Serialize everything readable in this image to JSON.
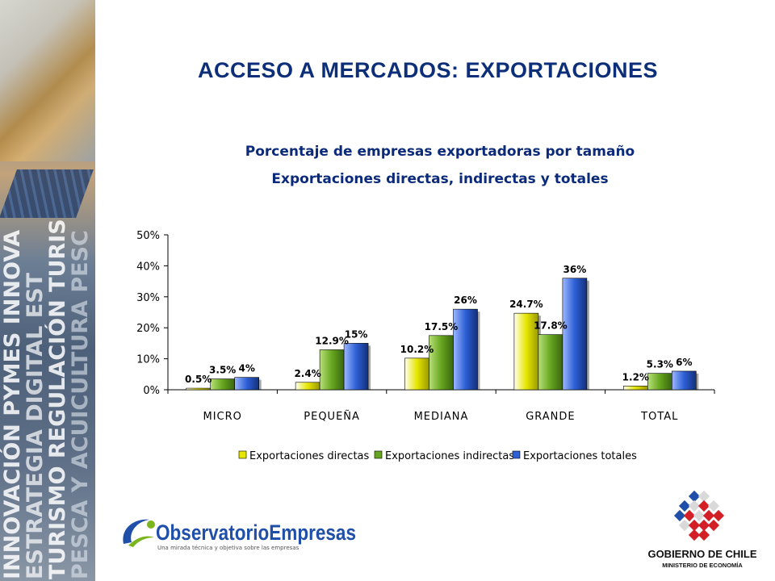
{
  "slide": {
    "title": "ACCESO A MERCADOS: EXPORTACIONES",
    "side_words": [
      "INNOVACIÓN PYMES INNOVA",
      "ESTRATEGIA DIGITAL EST",
      "TURISMO REGULACIÓN TURIS",
      "PESCA Y ACUICULTURA PESC"
    ]
  },
  "chart_data": {
    "type": "bar",
    "title": "Porcentaje de empresas exportadoras por tamaño",
    "subtitle": "Exportaciones directas, indirectas y totales",
    "categories": [
      "MICRO",
      "PEQUEÑA",
      "MEDIANA",
      "GRANDE",
      "TOTAL"
    ],
    "series": [
      {
        "name": "Exportaciones directas",
        "color": "#e6e600",
        "values": [
          0.5,
          2.4,
          10.2,
          24.7,
          1.2
        ],
        "labels": [
          "0.5%",
          "2.4%",
          "10.2%",
          "24.7%",
          "1.2%"
        ]
      },
      {
        "name": "Exportaciones indirectas",
        "color": "#66a61e",
        "values": [
          3.5,
          12.9,
          17.5,
          17.8,
          5.3
        ],
        "labels": [
          "3.5%",
          "12.9%",
          "17.5%",
          "17.8%",
          "5.3%"
        ]
      },
      {
        "name": "Exportaciones totales",
        "color": "#2d5fd6",
        "values": [
          4,
          15,
          26,
          36,
          6
        ],
        "labels": [
          "4%",
          "15%",
          "26%",
          "36%",
          "6%"
        ]
      }
    ],
    "ylim": [
      0,
      50
    ],
    "yticks": [
      "0%",
      "10%",
      "20%",
      "30%",
      "40%",
      "50%"
    ],
    "ytick_values": [
      0,
      10,
      20,
      30,
      40,
      50
    ],
    "legend": "bottom",
    "grid": false
  },
  "logos": {
    "observatorio": "ObservatorioEmpresas",
    "observatorio_tagline": "Una mirada técnica y objetiva sobre las empresas",
    "gobierno": "GOBIERNO DE CHILE",
    "ministerio": "MINISTERIO DE ECONOMÍA"
  },
  "colors": {
    "title": "#0d2f79",
    "chart_title": "#0b2a7a"
  }
}
